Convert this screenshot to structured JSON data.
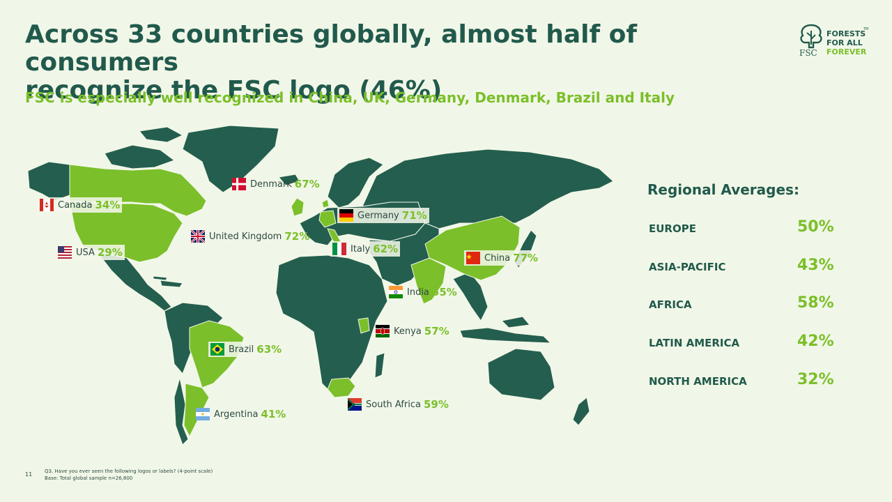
{
  "title": {
    "line1": "Across 33 countries globally, almost half of consumers",
    "line2": "recognize the FSC logo (46%)"
  },
  "subtitle": "FSC is especially well recognized in China, UK, Germany, Denmark, Brazil and Italy",
  "logo": {
    "words": [
      "FORESTS",
      "FOR ALL",
      "FOREVER"
    ],
    "tm": "TM",
    "brand": "FSC"
  },
  "colors": {
    "background": "#f1f7e8",
    "dark_green": "#215a4c",
    "map_dark": "#245e4e",
    "map_highlight": "#7bbf2a",
    "accent_text": "#7bbf2a"
  },
  "countries": [
    {
      "name": "Denmark",
      "value": "67%",
      "flag": "denmark-flag"
    },
    {
      "name": "Canada",
      "value": "34%",
      "flag": "canada-flag"
    },
    {
      "name": "Germany",
      "value": "71%",
      "flag": "germany-flag"
    },
    {
      "name": "United Kingdom",
      "value": "72%",
      "flag": "uk-flag"
    },
    {
      "name": "Italy",
      "value": "62%",
      "flag": "italy-flag"
    },
    {
      "name": "USA",
      "value": "29%",
      "flag": "usa-flag"
    },
    {
      "name": "China",
      "value": "77%",
      "flag": "china-flag"
    },
    {
      "name": "India",
      "value": "55%",
      "flag": "india-flag"
    },
    {
      "name": "Kenya",
      "value": "57%",
      "flag": "kenya-flag"
    },
    {
      "name": "Brazil",
      "value": "63%",
      "flag": "brazil-flag"
    },
    {
      "name": "South Africa",
      "value": "59%",
      "flag": "south-africa-flag"
    },
    {
      "name": "Argentina",
      "value": "41%",
      "flag": "argentina-flag"
    }
  ],
  "regional": {
    "title": "Regional Averages:",
    "rows": [
      {
        "name": "EUROPE",
        "value": "50%"
      },
      {
        "name": "ASIA-PACIFIC",
        "value": "43%"
      },
      {
        "name": "AFRICA",
        "value": "58%"
      },
      {
        "name": "LATIN AMERICA",
        "value": "42%"
      },
      {
        "name": "NORTH AMERICA",
        "value": "32%"
      }
    ]
  },
  "footer": {
    "page": "11",
    "question": "Q3. Have you ever seen the following logos or labels? (4-point scale)",
    "base": "Base: Total global sample n=26,800"
  }
}
